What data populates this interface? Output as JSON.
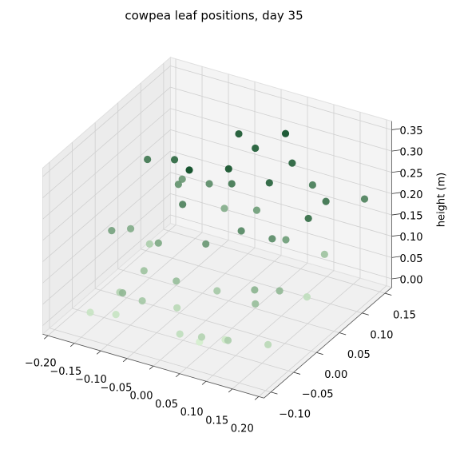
{
  "chart_data": {
    "type": "scatter3d",
    "title": "cowpea leaf positions, day 35",
    "zlabel": "height (m)",
    "x": [
      -0.15,
      -0.12,
      -0.16,
      -0.08,
      -0.05,
      -0.1,
      -0.02,
      0.03,
      0.06,
      0.1,
      0.14,
      0.17,
      0.12,
      0.08,
      0.02,
      -0.03,
      -0.07,
      -0.12,
      -0.17,
      -0.14,
      -0.06,
      0.0,
      0.05,
      0.11,
      0.15,
      0.09,
      0.04,
      -0.01,
      -0.09,
      -0.13,
      0.16,
      0.13,
      0.07,
      -0.04,
      -0.11,
      0.01,
      0.1,
      -0.15,
      0.18,
      -0.02,
      0.06,
      -0.06,
      0.12,
      -0.18,
      0.03,
      0.14,
      -0.08,
      0.0
    ],
    "y": [
      -0.08,
      -0.05,
      0.02,
      0.1,
      0.13,
      -0.02,
      0.08,
      0.14,
      0.12,
      0.06,
      0.0,
      -0.06,
      -0.09,
      -0.05,
      -0.08,
      -0.03,
      0.03,
      0.07,
      -0.01,
      0.11,
      -0.07,
      0.05,
      0.02,
      -0.02,
      0.09,
      0.13,
      -0.06,
      0.12,
      0.0,
      0.09,
      0.04,
      0.11,
      -0.09,
      0.01,
      -0.07,
      0.1,
      0.03,
      0.05,
      0.14,
      -0.04,
      0.07,
      0.11,
      -0.03,
      0.08,
      -0.01,
      0.06,
      -0.09,
      0.0
    ],
    "z": [
      0.02,
      0.05,
      0.12,
      0.18,
      0.28,
      0.08,
      0.22,
      0.3,
      0.26,
      0.15,
      0.1,
      0.04,
      0.06,
      0.01,
      0.03,
      0.09,
      0.2,
      0.25,
      0.14,
      0.16,
      0.07,
      0.29,
      0.19,
      0.11,
      0.23,
      0.21,
      0.0,
      0.27,
      0.13,
      0.17,
      0.24,
      0.08,
      0.05,
      0.31,
      0.02,
      0.15,
      0.18,
      0.06,
      0.2,
      0.04,
      0.26,
      0.12,
      0.09,
      0.22,
      0.07,
      0.03,
      0.1,
      0.16
    ],
    "colormap": [
      "#d4eecd",
      "#00441b"
    ],
    "xlim": [
      -0.21,
      0.21
    ],
    "ylim": [
      -0.115,
      0.165
    ],
    "zlim": [
      -0.02,
      0.37
    ],
    "xticks": [
      {
        "value": -0.2,
        "label": "−0.20"
      },
      {
        "value": -0.15,
        "label": "−0.15"
      },
      {
        "value": -0.1,
        "label": "−0.10"
      },
      {
        "value": -0.05,
        "label": "−0.05"
      },
      {
        "value": 0,
        "label": "0.00"
      },
      {
        "value": 0.05,
        "label": "0.05"
      },
      {
        "value": 0.1,
        "label": "0.10"
      },
      {
        "value": 0.15,
        "label": "0.15"
      },
      {
        "value": 0.2,
        "label": "0.20"
      }
    ],
    "yticks": [
      {
        "value": -0.1,
        "label": "−0.10"
      },
      {
        "value": -0.05,
        "label": "−0.05"
      },
      {
        "value": 0,
        "label": "0.00"
      },
      {
        "value": 0.05,
        "label": "0.05"
      },
      {
        "value": 0.1,
        "label": "0.10"
      },
      {
        "value": 0.15,
        "label": "0.15"
      }
    ],
    "zticks": [
      {
        "value": 0,
        "label": "0.00"
      },
      {
        "value": 0.05,
        "label": "0.05"
      },
      {
        "value": 0.1,
        "label": "0.10"
      },
      {
        "value": 0.15,
        "label": "0.15"
      },
      {
        "value": 0.2,
        "label": "0.20"
      },
      {
        "value": 0.25,
        "label": "0.25"
      },
      {
        "value": 0.3,
        "label": "0.30"
      },
      {
        "value": 0.35,
        "label": "0.35"
      }
    ],
    "grid": true
  }
}
